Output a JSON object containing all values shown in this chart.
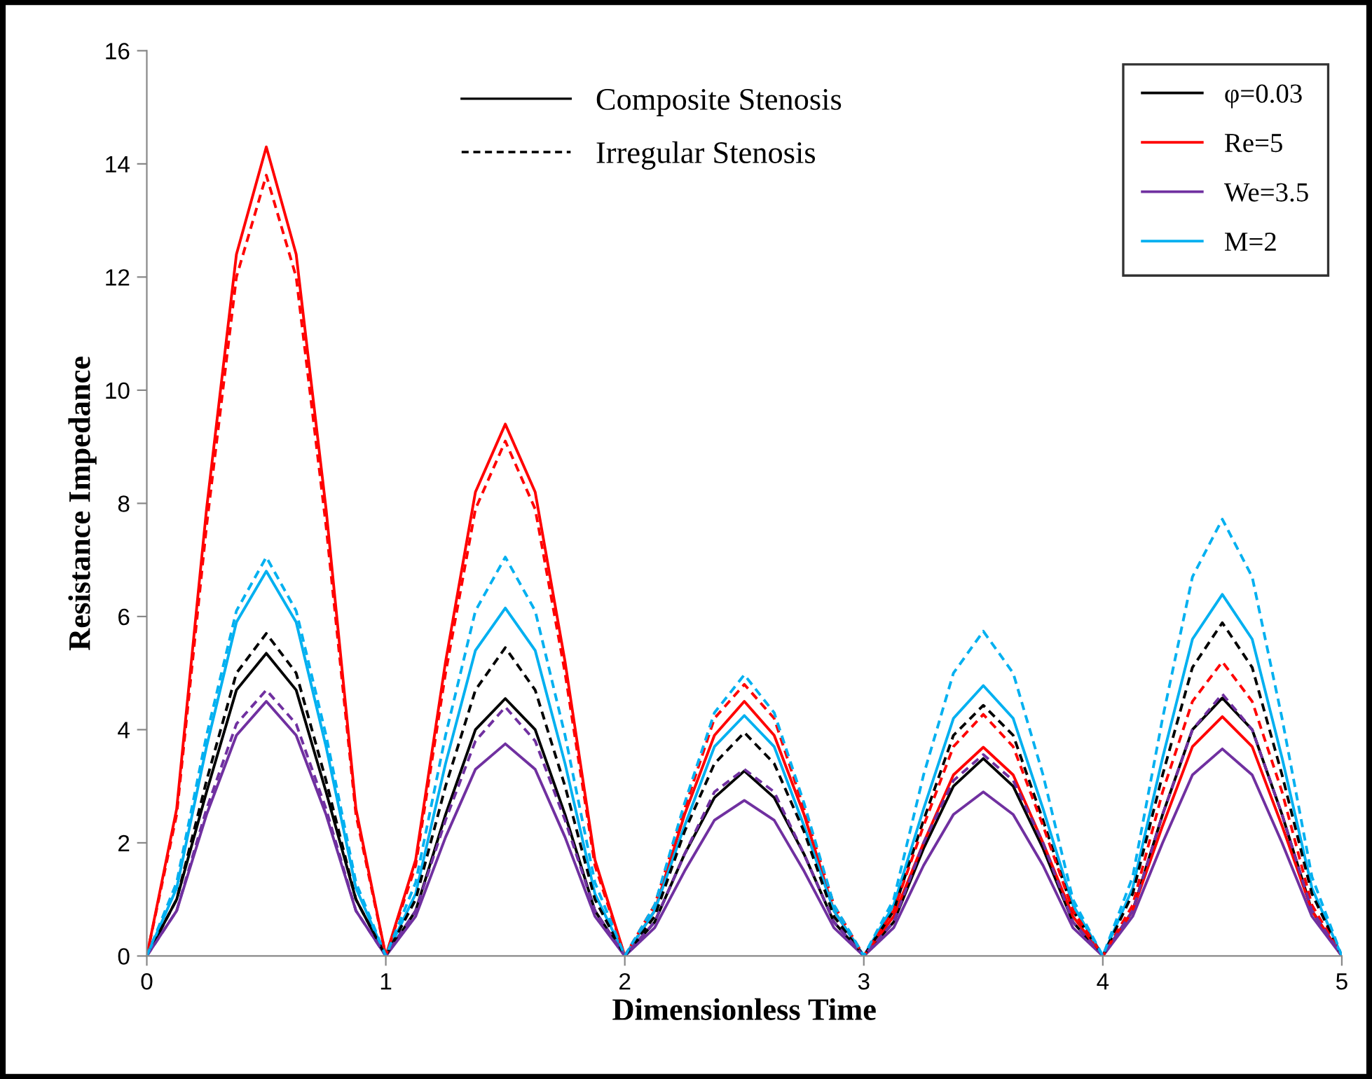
{
  "chart_data": {
    "type": "line",
    "xlabel": "Dimensionless Time",
    "ylabel": "Resistance Impedance",
    "x": [
      0,
      0.125,
      0.25,
      0.375,
      0.5,
      0.625,
      0.75,
      0.875,
      1,
      1.125,
      1.25,
      1.375,
      1.5,
      1.625,
      1.75,
      1.875,
      2,
      2.125,
      2.25,
      2.375,
      2.5,
      2.625,
      2.75,
      2.875,
      3,
      3.125,
      3.25,
      3.375,
      3.5,
      3.625,
      3.75,
      3.875,
      4,
      4.125,
      4.25,
      4.375,
      4.5,
      4.625,
      4.75,
      4.875,
      5
    ],
    "series": [
      {
        "name": "φ=0.03",
        "color": "#000000",
        "line_style": "solid",
        "values": [
          0,
          1.0,
          2.9,
          4.7,
          5.35,
          4.7,
          2.9,
          1.0,
          0,
          0.8,
          2.5,
          4.0,
          4.55,
          4.0,
          2.5,
          0.8,
          0,
          0.6,
          1.8,
          2.8,
          3.27,
          2.8,
          1.8,
          0.6,
          0,
          0.6,
          1.9,
          3.0,
          3.49,
          3.0,
          1.9,
          0.6,
          0,
          0.8,
          2.5,
          4.0,
          4.56,
          4.0,
          2.5,
          0.8,
          0
        ]
      },
      {
        "name": "Re=5",
        "color": "#ff0000",
        "line_style": "solid",
        "values": [
          0,
          2.6,
          7.9,
          12.4,
          14.3,
          12.4,
          7.9,
          2.6,
          0,
          1.7,
          5.2,
          8.2,
          9.4,
          8.2,
          5.2,
          1.7,
          0,
          0.8,
          2.5,
          3.9,
          4.5,
          3.9,
          2.5,
          0.8,
          0,
          0.7,
          2.0,
          3.2,
          3.69,
          3.2,
          2.0,
          0.7,
          0,
          0.8,
          2.3,
          3.7,
          4.23,
          3.7,
          2.3,
          0.8,
          0
        ]
      },
      {
        "name": "We=3.5",
        "color": "#7030a0",
        "line_style": "solid",
        "values": [
          0,
          0.8,
          2.5,
          3.9,
          4.5,
          3.9,
          2.5,
          0.8,
          0,
          0.7,
          2.1,
          3.3,
          3.75,
          3.3,
          2.1,
          0.7,
          0,
          0.5,
          1.5,
          2.4,
          2.75,
          2.4,
          1.5,
          0.5,
          0,
          0.5,
          1.6,
          2.5,
          2.9,
          2.5,
          1.6,
          0.5,
          0,
          0.7,
          2.0,
          3.2,
          3.66,
          3.2,
          2.0,
          0.7,
          0
        ]
      },
      {
        "name": "M=2",
        "color": "#00b0f0",
        "line_style": "solid",
        "values": [
          0,
          1.2,
          3.7,
          5.9,
          6.8,
          5.9,
          3.7,
          1.2,
          0,
          1.1,
          3.4,
          5.4,
          6.15,
          5.4,
          3.4,
          1.1,
          0,
          0.8,
          2.3,
          3.7,
          4.25,
          3.7,
          2.3,
          0.8,
          0,
          0.9,
          2.6,
          4.2,
          4.78,
          4.2,
          2.6,
          0.9,
          0,
          1.2,
          3.5,
          5.6,
          6.39,
          5.6,
          3.5,
          1.2,
          0
        ]
      },
      {
        "color": "#000000",
        "line_style": "dashed",
        "values": [
          0,
          1.0,
          3.1,
          5.0,
          5.7,
          5.0,
          3.1,
          1.0,
          0,
          1.0,
          3.0,
          4.7,
          5.45,
          4.7,
          3.0,
          1.0,
          0,
          0.7,
          2.2,
          3.4,
          3.95,
          3.4,
          2.2,
          0.7,
          0,
          0.8,
          2.4,
          3.9,
          4.43,
          3.9,
          2.4,
          0.8,
          0,
          1.1,
          3.2,
          5.1,
          5.89,
          5.1,
          3.2,
          1.1,
          0
        ]
      },
      {
        "color": "#ff0000",
        "line_style": "dashed",
        "values": [
          0,
          2.5,
          7.6,
          12.0,
          13.8,
          12.0,
          7.6,
          2.5,
          0,
          1.6,
          5.0,
          7.9,
          9.1,
          7.9,
          5.0,
          1.6,
          0,
          0.9,
          2.6,
          4.2,
          4.8,
          4.2,
          2.6,
          0.9,
          0,
          0.8,
          2.3,
          3.7,
          4.27,
          3.7,
          2.3,
          0.8,
          0,
          0.9,
          2.9,
          4.5,
          5.2,
          4.5,
          2.9,
          0.9,
          0
        ]
      },
      {
        "color": "#7030a0",
        "line_style": "dashed",
        "values": [
          0,
          0.8,
          2.6,
          4.1,
          4.7,
          4.1,
          2.6,
          0.8,
          0,
          0.8,
          2.4,
          3.8,
          4.4,
          3.8,
          2.4,
          0.8,
          0,
          0.6,
          1.8,
          2.9,
          3.3,
          2.9,
          1.8,
          0.6,
          0,
          0.6,
          2.0,
          3.1,
          3.56,
          3.1,
          2.0,
          0.6,
          0,
          0.8,
          2.5,
          4.0,
          4.63,
          4.0,
          2.5,
          0.8,
          0
        ]
      },
      {
        "color": "#00b0f0",
        "line_style": "dashed",
        "values": [
          0,
          1.3,
          3.9,
          6.1,
          7.05,
          6.1,
          3.9,
          1.3,
          0,
          1.3,
          3.9,
          6.1,
          7.05,
          6.1,
          3.9,
          1.3,
          0,
          0.9,
          2.7,
          4.3,
          4.97,
          4.3,
          2.7,
          0.9,
          0,
          1.0,
          3.2,
          5.0,
          5.74,
          5.0,
          3.2,
          1.0,
          0,
          1.4,
          4.2,
          6.7,
          7.72,
          6.7,
          4.2,
          1.4,
          0
        ]
      }
    ],
    "annotations": [
      "Composite Stenosis",
      "Irregular Stenosis"
    ],
    "xlim": [
      0,
      5
    ],
    "xticks": [
      0,
      1,
      2,
      3,
      4,
      5
    ],
    "ylim": [
      0,
      16
    ],
    "yticks": [
      0,
      2,
      4,
      6,
      8,
      10,
      12,
      14,
      16
    ],
    "grid": false,
    "legend": "top right",
    "marker": "none"
  }
}
